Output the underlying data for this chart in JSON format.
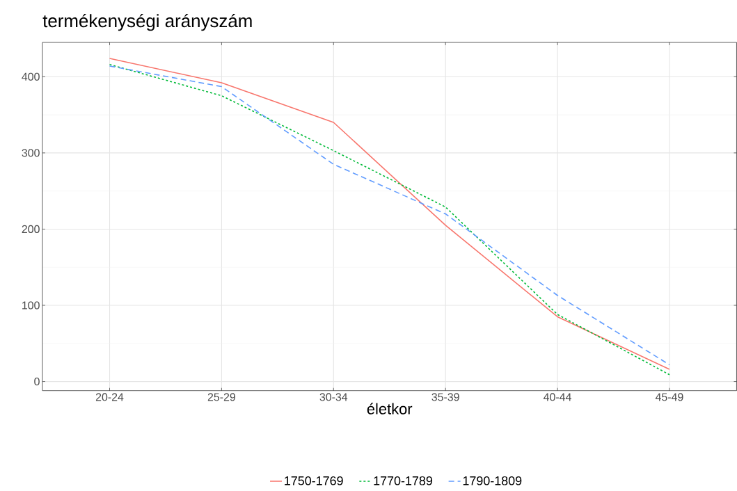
{
  "chart_data": {
    "type": "line",
    "title": "termékenységi arányszám",
    "xlabel": "életkor",
    "categories": [
      "20-24",
      "25-29",
      "30-34",
      "35-39",
      "40-44",
      "45-49"
    ],
    "series": [
      {
        "name": "1750-1769",
        "color": "#f8766d",
        "line_style": "solid",
        "values": [
          424,
          392,
          340,
          205,
          85,
          16
        ]
      },
      {
        "name": "1770-1789",
        "color": "#00ba38",
        "line_style": "dotted",
        "values": [
          416,
          375,
          303,
          229,
          88,
          9
        ]
      },
      {
        "name": "1790-1809",
        "color": "#619cff",
        "line_style": "dashed",
        "values": [
          414,
          387,
          285,
          220,
          113,
          22
        ]
      }
    ],
    "ylim": [
      -12,
      445
    ],
    "yticks": [
      0,
      100,
      200,
      300,
      400
    ],
    "grid": true,
    "legend": "bottom",
    "marker": "none"
  }
}
